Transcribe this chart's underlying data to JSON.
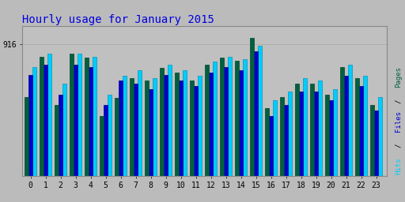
{
  "title": "Hourly usage for January 2015",
  "title_color": "#0000dd",
  "title_fontsize": 10,
  "background_color": "#bbbbbb",
  "plot_bg_color": "#c0c0c0",
  "hours": [
    0,
    1,
    2,
    3,
    4,
    5,
    6,
    7,
    8,
    9,
    10,
    11,
    12,
    13,
    14,
    15,
    16,
    17,
    18,
    19,
    20,
    21,
    22,
    23
  ],
  "pages": [
    550,
    830,
    490,
    850,
    820,
    415,
    540,
    680,
    660,
    750,
    720,
    660,
    775,
    820,
    800,
    960,
    470,
    545,
    640,
    640,
    565,
    755,
    680,
    490
  ],
  "files": [
    700,
    775,
    565,
    775,
    755,
    490,
    660,
    640,
    605,
    700,
    660,
    622,
    717,
    755,
    736,
    868,
    415,
    490,
    585,
    585,
    528,
    698,
    622,
    453
  ],
  "hits": [
    755,
    850,
    640,
    850,
    830,
    566,
    698,
    736,
    679,
    774,
    736,
    698,
    792,
    830,
    811,
    906,
    528,
    585,
    679,
    660,
    604,
    774,
    698,
    547
  ],
  "pages_color": "#006040",
  "files_color": "#0000cc",
  "hits_color": "#00ccff",
  "pages_edge": "#004428",
  "files_edge": "#000088",
  "hits_edge": "#0099bb",
  "ylabel": "916",
  "right_label_pages": "Pages",
  "right_label_files": "Files",
  "right_label_hits": "Hits",
  "bar_width": 0.26,
  "ymax": 1040,
  "ytick_val": 916
}
